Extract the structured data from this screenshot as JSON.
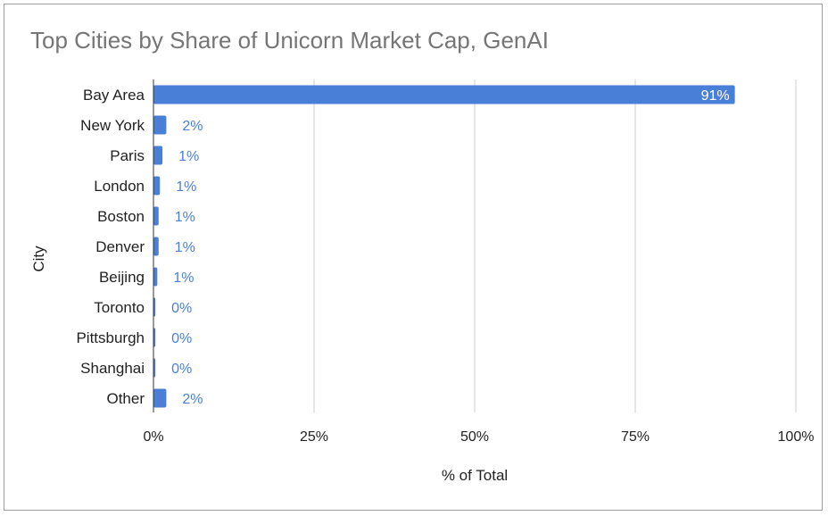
{
  "chart_data": {
    "type": "bar",
    "orientation": "horizontal",
    "title": "Top Cities by Share of Unicorn Market Cap, GenAI",
    "xlabel": "% of Total",
    "ylabel": "City",
    "categories": [
      "Bay Area",
      "New York",
      "Paris",
      "London",
      "Boston",
      "Denver",
      "Beijing",
      "Toronto",
      "Pittsburgh",
      "Shanghai",
      "Other"
    ],
    "values": [
      0.905,
      0.02,
      0.014,
      0.01,
      0.008,
      0.008,
      0.006,
      0.003,
      0.003,
      0.003,
      0.02
    ],
    "data_labels": [
      "91%",
      "2%",
      "1%",
      "1%",
      "1%",
      "1%",
      "1%",
      "0%",
      "0%",
      "0%",
      "2%"
    ],
    "xlim": [
      0,
      1
    ],
    "xticks": [
      0,
      0.25,
      0.5,
      0.75,
      1
    ],
    "xtick_labels": [
      "0%",
      "25%",
      "50%",
      "75%",
      "100%"
    ],
    "grid": true,
    "legend": "none",
    "bar_color": "#4a7fd8",
    "label_color": "#4a7fd8",
    "grid_color": "#cccccc"
  }
}
